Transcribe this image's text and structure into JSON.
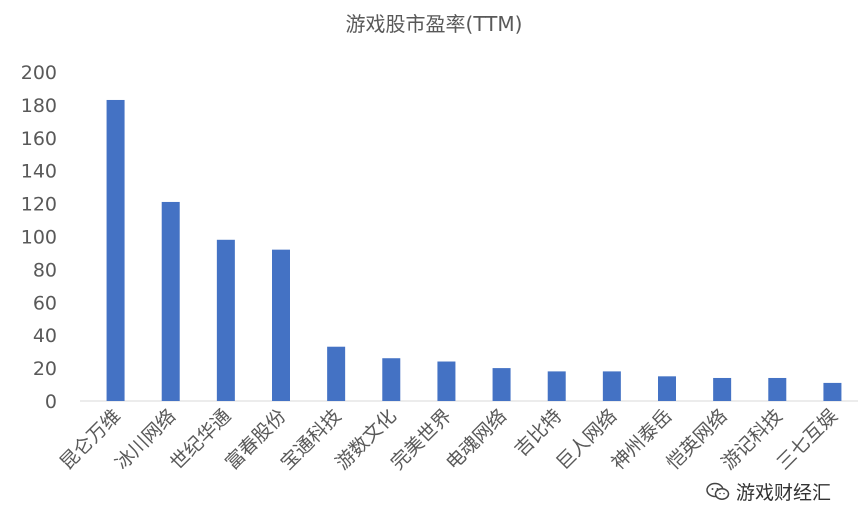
{
  "chart_data": {
    "type": "bar",
    "title": "游戏股市盈率(TTM)",
    "xlabel": "",
    "ylabel": "",
    "categories": [
      "昆仑万维",
      "冰川网络",
      "世纪华通",
      "富春股份",
      "宝通科技",
      "游数文化",
      "完美世界",
      "电魂网络",
      "吉比特",
      "巨人网络",
      "神州泰岳",
      "恺英网络",
      "游记科技",
      "三七互娱"
    ],
    "values": [
      183,
      121,
      98,
      92,
      33,
      26,
      24,
      20,
      18,
      18,
      15,
      14,
      14,
      11
    ],
    "ylim": [
      0,
      200
    ],
    "yticks": [
      0,
      20,
      40,
      60,
      80,
      100,
      120,
      140,
      160,
      180,
      200
    ],
    "grid": false,
    "legend": "none",
    "bar_color": "#4472C4"
  },
  "watermark": {
    "text": "游戏财经汇",
    "icon": "wechat-icon"
  }
}
